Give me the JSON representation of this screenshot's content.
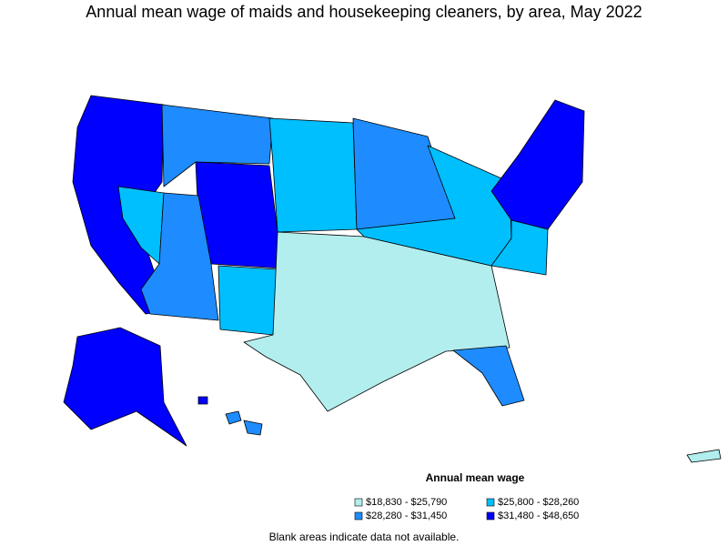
{
  "title": "Annual mean wage of maids and housekeeping cleaners, by area, May 2022",
  "legend": {
    "title": "Annual mean wage",
    "items": [
      {
        "label": "$18,830 - $25,790",
        "color": "#b3eeee"
      },
      {
        "label": "$25,800 - $28,260",
        "color": "#00bfff"
      },
      {
        "label": "$28,280 - $31,450",
        "color": "#1e8cff"
      },
      {
        "label": "$31,480 - $48,650",
        "color": "#0000ff"
      }
    ]
  },
  "note": "Blank areas indicate data not available."
}
